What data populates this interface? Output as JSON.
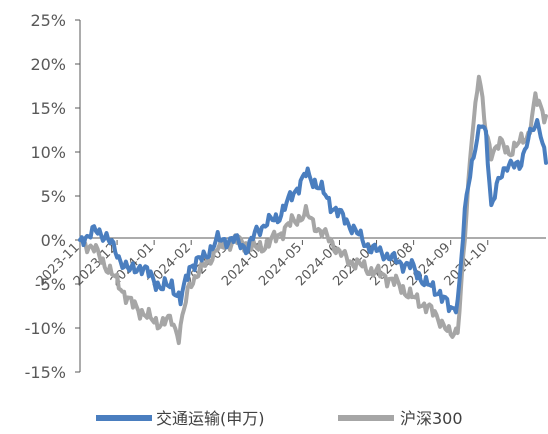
{
  "chart_data": {
    "type": "line",
    "title": "",
    "xlabel": "",
    "ylabel": "",
    "ylim": [
      -15,
      25
    ],
    "y_ticks": [
      -15,
      -10,
      -5,
      0,
      5,
      10,
      15,
      20,
      25
    ],
    "y_tick_labels": [
      "-15%",
      "-10%",
      "-5%",
      "0%",
      "5%",
      "10%",
      "15%",
      "20%",
      "25%"
    ],
    "x_tick_labels": [
      "2023-11",
      "2023-12",
      "2024-01",
      "2024-02",
      "2024-03",
      "2024-04",
      "2024-05",
      "2024-06",
      "2024-07",
      "2024-08",
      "2024-09",
      "2024-10"
    ],
    "x_tick_index": [
      0,
      21,
      42,
      63,
      84,
      105,
      126,
      147,
      168,
      189,
      210,
      231
    ],
    "x_count": 264,
    "legend_position": "bottom",
    "grid": false,
    "series": [
      {
        "name": "交通运输(申万)",
        "color": "#4a7ebf",
        "anchors": [
          [
            0,
            0
          ],
          [
            8,
            1
          ],
          [
            15,
            0.5
          ],
          [
            22,
            -2
          ],
          [
            28,
            -3.5
          ],
          [
            34,
            -3
          ],
          [
            40,
            -4
          ],
          [
            46,
            -5.5
          ],
          [
            52,
            -5
          ],
          [
            57,
            -7
          ],
          [
            62,
            -3
          ],
          [
            70,
            -2
          ],
          [
            78,
            0
          ],
          [
            88,
            0
          ],
          [
            95,
            -1
          ],
          [
            100,
            1
          ],
          [
            106,
            2
          ],
          [
            112,
            2.5
          ],
          [
            120,
            5
          ],
          [
            128,
            7.5
          ],
          [
            136,
            6
          ],
          [
            142,
            4
          ],
          [
            147,
            3
          ],
          [
            154,
            1.5
          ],
          [
            160,
            0
          ],
          [
            165,
            -1
          ],
          [
            172,
            -1.5
          ],
          [
            180,
            -2.5
          ],
          [
            188,
            -3
          ],
          [
            196,
            -5
          ],
          [
            204,
            -6
          ],
          [
            210,
            -8
          ],
          [
            214,
            -7
          ],
          [
            219,
            5
          ],
          [
            223,
            10
          ],
          [
            227,
            13
          ],
          [
            230,
            12
          ],
          [
            233,
            4
          ],
          [
            236,
            6
          ],
          [
            243,
            9
          ],
          [
            249,
            8
          ],
          [
            254,
            12
          ],
          [
            260,
            13
          ],
          [
            264,
            9.5
          ]
        ],
        "noise": 0.8
      },
      {
        "name": "沪深300",
        "color": "#a6a6a6",
        "anchors": [
          [
            0,
            0
          ],
          [
            8,
            -1
          ],
          [
            15,
            -3
          ],
          [
            22,
            -5
          ],
          [
            28,
            -7
          ],
          [
            34,
            -8
          ],
          [
            40,
            -9
          ],
          [
            46,
            -9.5
          ],
          [
            52,
            -9
          ],
          [
            56,
            -11
          ],
          [
            62,
            -5
          ],
          [
            70,
            -3
          ],
          [
            78,
            -1
          ],
          [
            88,
            0
          ],
          [
            95,
            -0.5
          ],
          [
            100,
            -1
          ],
          [
            106,
            -0.5
          ],
          [
            112,
            0.5
          ],
          [
            120,
            2
          ],
          [
            128,
            3
          ],
          [
            136,
            1
          ],
          [
            142,
            0
          ],
          [
            147,
            -1.5
          ],
          [
            154,
            -2.5
          ],
          [
            160,
            -3
          ],
          [
            165,
            -3.5
          ],
          [
            172,
            -4
          ],
          [
            180,
            -5
          ],
          [
            188,
            -6.5
          ],
          [
            196,
            -7.5
          ],
          [
            204,
            -9
          ],
          [
            210,
            -11
          ],
          [
            214,
            -10
          ],
          [
            218,
            0
          ],
          [
            222,
            12
          ],
          [
            226,
            19
          ],
          [
            230,
            12
          ],
          [
            233,
            10
          ],
          [
            238,
            11
          ],
          [
            243,
            10
          ],
          [
            249,
            11
          ],
          [
            254,
            12
          ],
          [
            258,
            16
          ],
          [
            264,
            14
          ]
        ],
        "noise": 0.8
      }
    ]
  }
}
